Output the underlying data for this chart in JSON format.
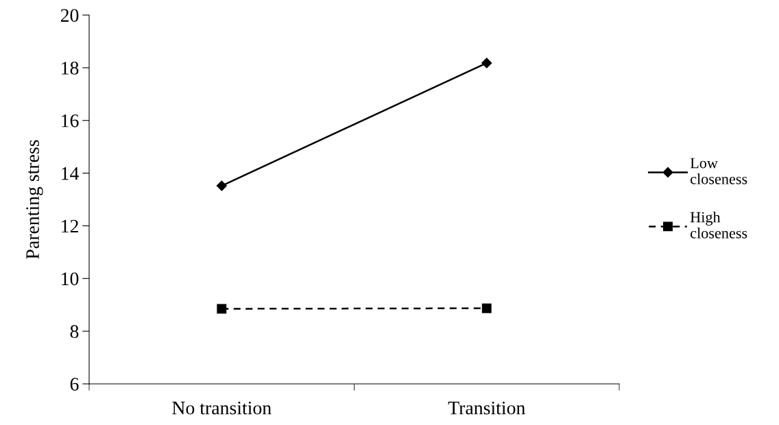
{
  "chart_data": {
    "type": "line",
    "ylabel": "Parenting stress",
    "categories": [
      "No transition",
      "Transition"
    ],
    "series": [
      {
        "name": "Low closeness",
        "color": "#000000",
        "values": [
          13.52,
          18.18
        ],
        "marker": "diamond",
        "line_style": "solid"
      },
      {
        "name": "High closeness",
        "color": "#000000",
        "values": [
          8.85,
          8.87
        ],
        "marker": "square",
        "line_style": "dashed"
      }
    ],
    "ylim": [
      6,
      20
    ],
    "yticks": [
      6,
      8,
      10,
      12,
      14,
      16,
      18,
      20
    ],
    "grid": false,
    "legend": "right"
  }
}
